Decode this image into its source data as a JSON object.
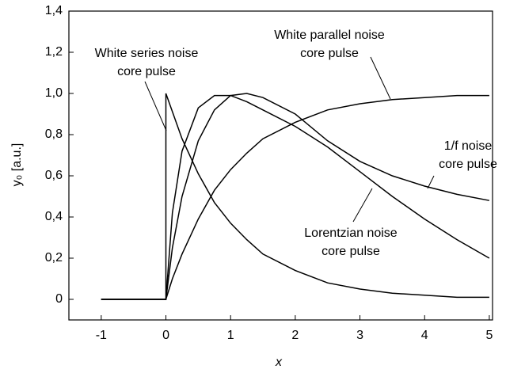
{
  "chart_data": {
    "type": "line",
    "xlabel": "x",
    "ylabel": "y₀ [a.u.]",
    "xlim": [
      -1.5,
      5.05
    ],
    "ylim": [
      -0.1,
      1.4
    ],
    "xticks": [
      -1,
      0,
      1,
      2,
      3,
      4,
      5
    ],
    "yticks": [
      0,
      {
        "value": 0.2,
        "label": "0,2"
      },
      {
        "value": 0.4,
        "label": "0,4"
      },
      {
        "value": 0.6,
        "label": "0,6"
      },
      {
        "value": 0.8,
        "label": "0,8"
      },
      {
        "value": 1.0,
        "label": "1,0"
      },
      {
        "value": 1.2,
        "label": "1,2"
      },
      {
        "value": 1.4,
        "label": "1,4"
      }
    ],
    "series": [
      {
        "name": "White series noise core pulse",
        "color": "#000000",
        "x": [
          -1,
          0,
          0,
          0.25,
          0.5,
          0.75,
          1,
          1.25,
          1.5,
          2,
          2.5,
          3,
          3.5,
          4,
          4.5,
          5
        ],
        "values": [
          0,
          0,
          1,
          0.78,
          0.61,
          0.47,
          0.37,
          0.29,
          0.22,
          0.14,
          0.08,
          0.05,
          0.03,
          0.02,
          0.01,
          0.01
        ]
      },
      {
        "name": "White parallel noise core pulse",
        "color": "#000000",
        "x": [
          -1,
          0,
          0.1,
          0.25,
          0.5,
          0.75,
          1,
          1.25,
          1.5,
          2,
          2.5,
          3,
          3.5,
          4,
          4.5,
          5
        ],
        "values": [
          0,
          0,
          0.1,
          0.22,
          0.39,
          0.53,
          0.63,
          0.71,
          0.78,
          0.86,
          0.92,
          0.95,
          0.97,
          0.98,
          0.99,
          0.99
        ]
      },
      {
        "name": "Lorentzian noise core pulse",
        "color": "#000000",
        "x": [
          -1,
          0,
          0.1,
          0.25,
          0.5,
          0.75,
          1,
          1.25,
          1.5,
          2,
          2.5,
          3,
          3.5,
          4,
          4.5,
          5
        ],
        "values": [
          0,
          0,
          0.42,
          0.72,
          0.93,
          0.99,
          0.99,
          0.96,
          0.92,
          0.84,
          0.74,
          0.62,
          0.5,
          0.39,
          0.29,
          0.2
        ]
      },
      {
        "name": "1/f noise core pulse",
        "color": "#000000",
        "x": [
          -1,
          0,
          0.1,
          0.25,
          0.5,
          0.75,
          1,
          1.25,
          1.5,
          2,
          2.5,
          3,
          3.5,
          4,
          4.5,
          5
        ],
        "values": [
          0,
          0,
          0.25,
          0.5,
          0.77,
          0.92,
          0.99,
          1.0,
          0.98,
          0.9,
          0.77,
          0.67,
          0.6,
          0.55,
          0.51,
          0.48
        ]
      }
    ],
    "annotations": [
      {
        "lines": [
          "White series noise",
          "core pulse"
        ]
      },
      {
        "lines": [
          "White parallel noise",
          "core pulse"
        ]
      },
      {
        "lines": [
          "Lorentzian noise",
          "core pulse"
        ]
      },
      {
        "lines": [
          "1/f noise",
          "core pulse"
        ]
      }
    ]
  }
}
